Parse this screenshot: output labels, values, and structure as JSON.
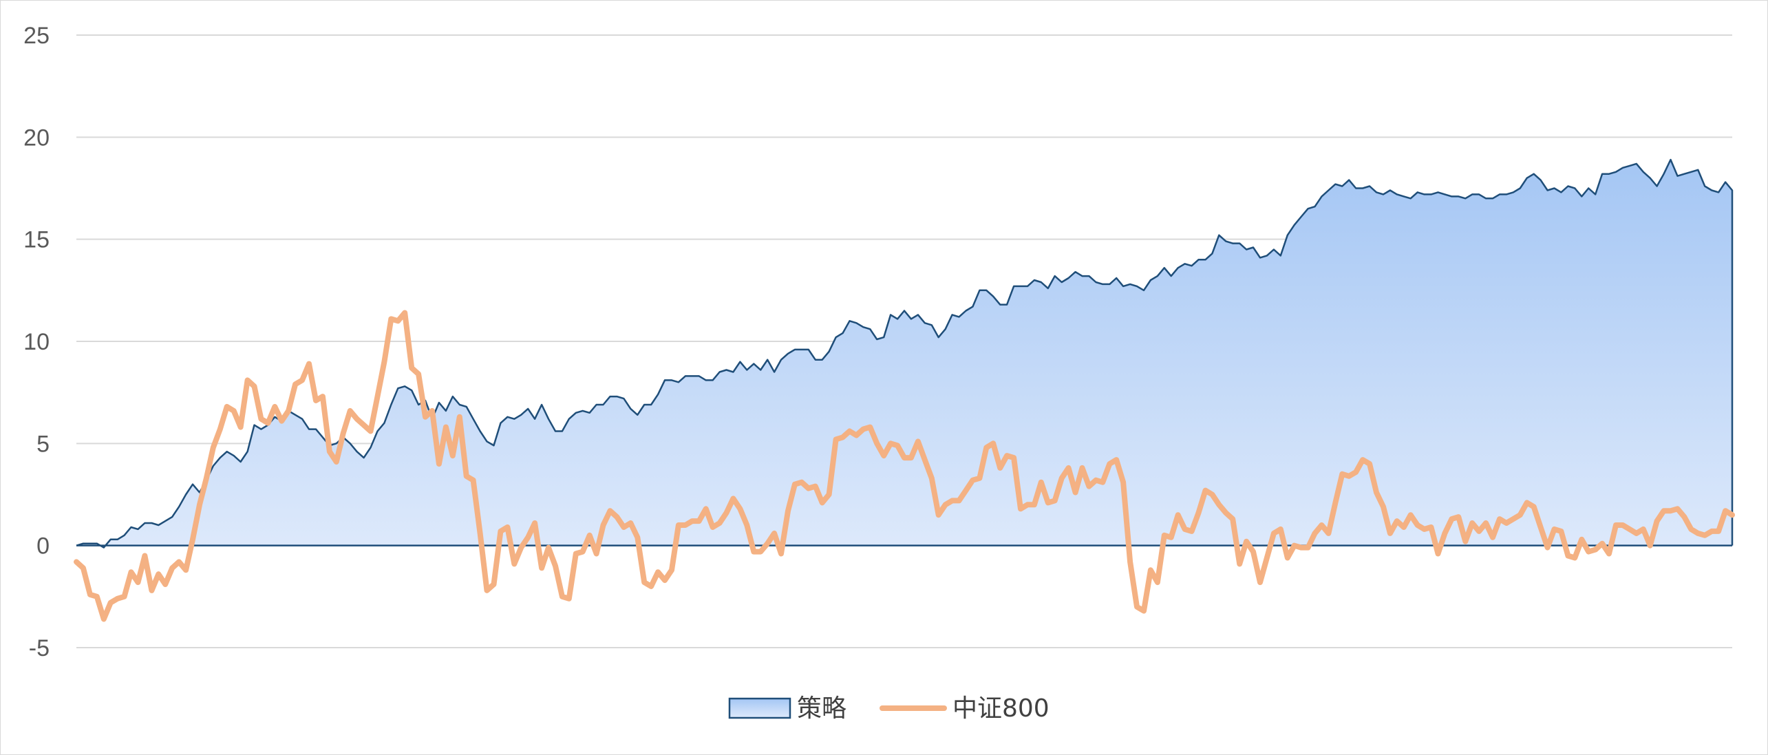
{
  "chart_data": {
    "type": "area",
    "title": "",
    "xlabel": "",
    "ylabel": "",
    "ylim": [
      -5,
      25
    ],
    "yticks": [
      25,
      20,
      15,
      10,
      5,
      0,
      -5
    ],
    "grid": true,
    "legend_position": "bottom",
    "series": [
      {
        "name": "策略",
        "type": "area",
        "stroke_color": "#1f4e79",
        "fill_top_color": "#a4c6f4",
        "fill_bottom_color": "#dde9fb",
        "values": [
          0.0,
          0.1,
          0.1,
          0.1,
          -0.1,
          0.3,
          0.3,
          0.5,
          0.9,
          0.8,
          1.1,
          1.1,
          1.0,
          1.2,
          1.4,
          1.9,
          2.5,
          3.0,
          2.6,
          3.2,
          3.9,
          4.3,
          4.6,
          4.4,
          4.1,
          4.6,
          5.9,
          5.7,
          5.9,
          6.3,
          6.1,
          6.6,
          6.4,
          6.2,
          5.7,
          5.7,
          5.3,
          4.9,
          5.0,
          5.3,
          5.0,
          4.6,
          4.3,
          4.8,
          5.6,
          6.0,
          6.9,
          7.7,
          7.8,
          7.6,
          6.9,
          7.1,
          6.2,
          7.0,
          6.6,
          7.3,
          6.9,
          6.8,
          6.2,
          5.6,
          5.1,
          4.9,
          6.0,
          6.3,
          6.2,
          6.4,
          6.7,
          6.2,
          6.9,
          6.2,
          5.6,
          5.6,
          6.2,
          6.5,
          6.6,
          6.5,
          6.9,
          6.9,
          7.3,
          7.3,
          7.2,
          6.7,
          6.4,
          6.9,
          6.9,
          7.4,
          8.1,
          8.1,
          8.0,
          8.3,
          8.3,
          8.3,
          8.1,
          8.1,
          8.5,
          8.6,
          8.5,
          9.0,
          8.6,
          8.9,
          8.6,
          9.1,
          8.5,
          9.1,
          9.4,
          9.6,
          9.6,
          9.6,
          9.1,
          9.1,
          9.5,
          10.2,
          10.4,
          11.0,
          10.9,
          10.7,
          10.6,
          10.1,
          10.2,
          11.3,
          11.1,
          11.5,
          11.1,
          11.3,
          10.9,
          10.8,
          10.2,
          10.6,
          11.3,
          11.2,
          11.5,
          11.7,
          12.5,
          12.5,
          12.2,
          11.8,
          11.8,
          12.7,
          12.7,
          12.7,
          13.0,
          12.9,
          12.6,
          13.2,
          12.9,
          13.1,
          13.4,
          13.2,
          13.2,
          12.9,
          12.8,
          12.8,
          13.1,
          12.7,
          12.8,
          12.7,
          12.5,
          13.0,
          13.2,
          13.6,
          13.2,
          13.6,
          13.8,
          13.7,
          14.0,
          14.0,
          14.3,
          15.2,
          14.9,
          14.8,
          14.8,
          14.5,
          14.6,
          14.1,
          14.2,
          14.5,
          14.2,
          15.2,
          15.7,
          16.1,
          16.5,
          16.6,
          17.1,
          17.4,
          17.7,
          17.6,
          17.9,
          17.5,
          17.5,
          17.6,
          17.3,
          17.2,
          17.4,
          17.2,
          17.1,
          17.0,
          17.3,
          17.2,
          17.2,
          17.3,
          17.2,
          17.1,
          17.1,
          17.0,
          17.2,
          17.2,
          17.0,
          17.0,
          17.2,
          17.2,
          17.3,
          17.5,
          18.0,
          18.2,
          17.9,
          17.4,
          17.5,
          17.3,
          17.6,
          17.5,
          17.1,
          17.5,
          17.2,
          18.2,
          18.2,
          18.3,
          18.5,
          18.6,
          18.7,
          18.3,
          18.0,
          17.6,
          18.2,
          18.9,
          18.1,
          18.2,
          18.3,
          18.4,
          17.6,
          17.4,
          17.3,
          17.8,
          17.4
        ]
      },
      {
        "name": "中证800",
        "type": "line",
        "stroke_color": "#f4b183",
        "values": [
          -0.8,
          -1.1,
          -2.4,
          -2.5,
          -3.6,
          -2.8,
          -2.6,
          -2.5,
          -1.3,
          -1.8,
          -0.5,
          -2.2,
          -1.4,
          -1.9,
          -1.1,
          -0.8,
          -1.2,
          0.3,
          2.0,
          3.3,
          4.8,
          5.7,
          6.8,
          6.6,
          5.8,
          8.1,
          7.8,
          6.2,
          6.0,
          6.8,
          6.1,
          6.6,
          7.9,
          8.1,
          8.9,
          7.1,
          7.3,
          4.6,
          4.1,
          5.5,
          6.6,
          6.2,
          5.9,
          5.6,
          7.3,
          9.0,
          11.1,
          11.0,
          11.4,
          8.7,
          8.4,
          6.3,
          6.6,
          4.0,
          5.8,
          4.4,
          6.3,
          3.4,
          3.2,
          0.6,
          -2.2,
          -1.9,
          0.7,
          0.9,
          -0.9,
          -0.1,
          0.4,
          1.1,
          -1.1,
          -0.1,
          -1.0,
          -2.5,
          -2.6,
          -0.4,
          -0.3,
          0.5,
          -0.4,
          1.0,
          1.7,
          1.4,
          0.9,
          1.1,
          0.4,
          -1.8,
          -2.0,
          -1.3,
          -1.7,
          -1.2,
          1.0,
          1.0,
          1.2,
          1.2,
          1.8,
          0.9,
          1.1,
          1.6,
          2.3,
          1.8,
          1.0,
          -0.3,
          -0.3,
          0.1,
          0.6,
          -0.4,
          1.7,
          3.0,
          3.1,
          2.8,
          2.9,
          2.1,
          2.5,
          5.2,
          5.3,
          5.6,
          5.4,
          5.7,
          5.8,
          5.0,
          4.4,
          5.0,
          4.9,
          4.3,
          4.3,
          5.1,
          4.2,
          3.3,
          1.5,
          2.0,
          2.2,
          2.2,
          2.7,
          3.2,
          3.3,
          4.8,
          5.0,
          3.8,
          4.4,
          4.3,
          1.8,
          2.0,
          2.0,
          3.1,
          2.1,
          2.2,
          3.3,
          3.8,
          2.6,
          3.8,
          2.9,
          3.2,
          3.1,
          4.0,
          4.2,
          3.1,
          -0.8,
          -3.0,
          -3.2,
          -1.2,
          -1.8,
          0.5,
          0.4,
          1.5,
          0.8,
          0.7,
          1.6,
          2.7,
          2.5,
          2.0,
          1.6,
          1.3,
          -0.9,
          0.2,
          -0.3,
          -1.8,
          -0.6,
          0.6,
          0.8,
          -0.6,
          0.0,
          -0.1,
          -0.1,
          0.6,
          1.0,
          0.6,
          2.1,
          3.5,
          3.4,
          3.6,
          4.2,
          4.0,
          2.6,
          1.9,
          0.6,
          1.2,
          0.9,
          1.5,
          1.0,
          0.8,
          0.9,
          -0.4,
          0.6,
          1.3,
          1.4,
          0.2,
          1.1,
          0.7,
          1.1,
          0.4,
          1.3,
          1.1,
          1.3,
          1.5,
          2.1,
          1.9,
          0.9,
          -0.1,
          0.8,
          0.7,
          -0.5,
          -0.6,
          0.3,
          -0.3,
          -0.2,
          0.1,
          -0.4,
          1.0,
          1.0,
          0.8,
          0.6,
          0.8,
          0.0,
          1.2,
          1.7,
          1.7,
          1.8,
          1.4,
          0.8,
          0.6,
          0.5,
          0.7,
          0.7,
          1.7,
          1.5
        ]
      }
    ]
  }
}
